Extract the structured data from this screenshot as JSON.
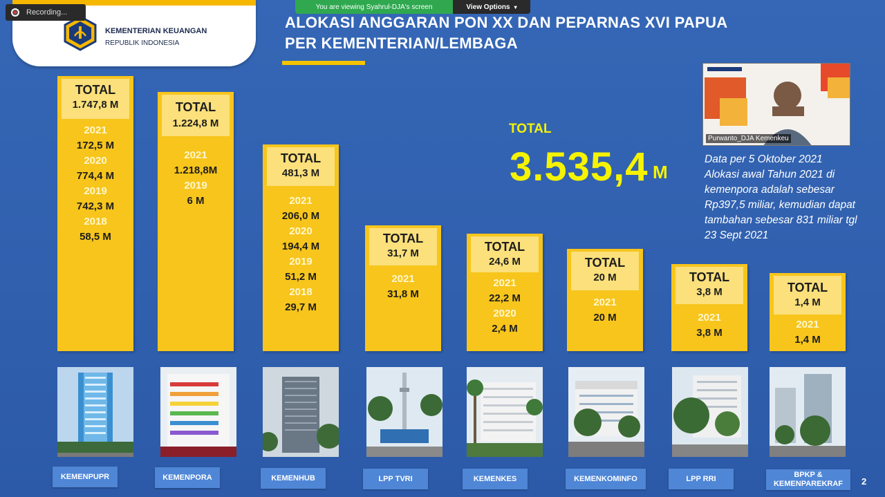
{
  "header": {
    "org_name": "KEMENTERIAN KEUANGAN",
    "org_sub": "REPUBLIK INDONESIA",
    "title_line1": "ALOKASI ANGGARAN PON XX DAN PEPARNAS XVI PAPUA",
    "title_line2": "PER KEMENTERIAN/LEMBAGA"
  },
  "meeting": {
    "recording_label": "Recording...",
    "viewing_label": "You are viewing Syahrul-DJA's screen",
    "view_options_label": "View Options",
    "participant_name": "Purwanto_DJA Kemenkeu"
  },
  "summary": {
    "total_label": "TOTAL",
    "total_value": "3.535,4",
    "total_unit": "M",
    "note_lines": [
      "Data per 5 Oktober 2021",
      "Alokasi awal Tahun 2021 di",
      "kemenpora adalah sebesar",
      "Rp397,5 miliar, kemudian dapat",
      "tambahan sebesar 831 miliar tgl",
      "23 Sept 2021"
    ]
  },
  "ministries": [
    {
      "label": "KEMENPUPR",
      "total_label": "TOTAL",
      "total": "1.747,8 M",
      "rows": [
        [
          "2021",
          "172,5 M"
        ],
        [
          "2020",
          "774,4 M"
        ],
        [
          "2019",
          "742,3 M"
        ],
        [
          "2018",
          "58,5 M"
        ]
      ]
    },
    {
      "label": "KEMENPORA",
      "total_label": "TOTAL",
      "total": "1.224,8 M",
      "rows": [
        [
          "2021",
          "1.218,8M"
        ],
        [
          "2019",
          "6 M"
        ]
      ]
    },
    {
      "label": "KEMENHUB",
      "total_label": "TOTAL",
      "total": "481,3 M",
      "rows": [
        [
          "2021",
          "206,0 M"
        ],
        [
          "2020",
          "194,4 M"
        ],
        [
          "2019",
          "51,2 M"
        ],
        [
          "2018",
          "29,7 M"
        ]
      ]
    },
    {
      "label": "LPP TVRI",
      "total_label": "TOTAL",
      "total": "31,7 M",
      "rows": [
        [
          "2021",
          "31,8 M"
        ]
      ]
    },
    {
      "label": "KEMENKES",
      "total_label": "TOTAL",
      "total": "24,6 M",
      "rows": [
        [
          "2021",
          "22,2 M"
        ],
        [
          "2020",
          "2,4 M"
        ]
      ]
    },
    {
      "label": "KEMENKOMINFO",
      "total_label": "TOTAL",
      "total": "20 M",
      "rows": [
        [
          "2021",
          "20 M"
        ]
      ]
    },
    {
      "label": "LPP RRI",
      "total_label": "TOTAL",
      "total": "3,8 M",
      "rows": [
        [
          "2021",
          "3,8 M"
        ]
      ]
    },
    {
      "label": "BPKP & KEMENPAREKRAF",
      "total_label": "TOTAL",
      "total": "1,4 M",
      "rows": [
        [
          "2021",
          "1,4 M"
        ]
      ]
    }
  ],
  "footer": {
    "page_number": "2"
  },
  "colors": {
    "background": "#2f5fae",
    "bar": "#f7c51c",
    "accent": "#f5f300",
    "label": "#4f86d6"
  }
}
